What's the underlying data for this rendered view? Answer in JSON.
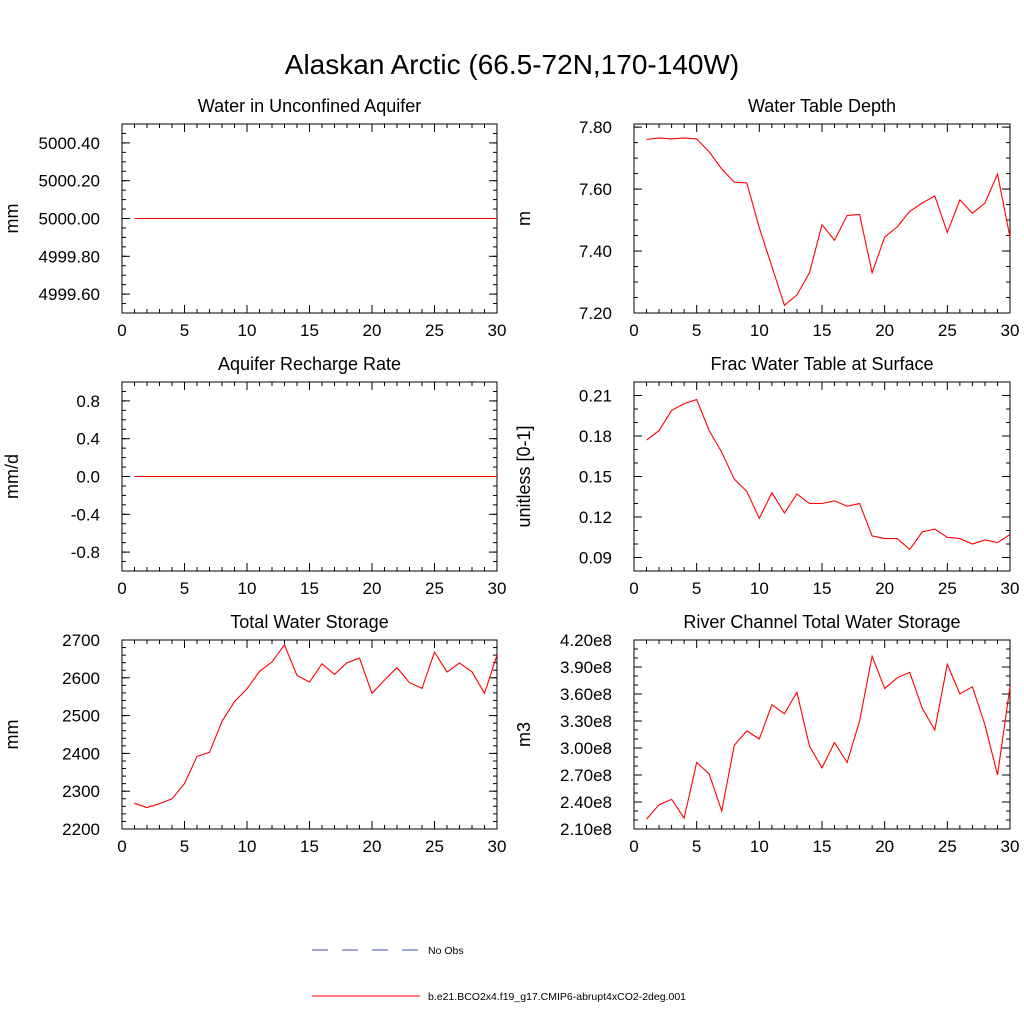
{
  "title": "Alaskan Arctic (66.5-72N,170-140W)",
  "colors": {
    "model": "#ff0000",
    "obs": "#3b4aa8",
    "axis": "#000000"
  },
  "legend": {
    "obs_label": "No Obs",
    "model_label": "b.e21.BCO2x4.f19_g17.CMIP6-abrupt4xCO2-2deg.001"
  },
  "chart_data": [
    {
      "type": "line",
      "title": "Water in Unconfined Aquifer",
      "ylabel": "mm",
      "xlim": [
        0,
        30
      ],
      "ylim": [
        4999.5,
        5000.5
      ],
      "xticks": [
        0,
        5,
        10,
        15,
        20,
        25,
        30
      ],
      "xtick_labels": [
        "0",
        "5",
        "10",
        "15",
        "20",
        "25",
        "30"
      ],
      "yticks": [
        4999.6,
        4999.8,
        5000.0,
        5000.2,
        5000.4
      ],
      "ytick_labels": [
        "4999.60",
        "4999.80",
        "5000.00",
        "5000.20",
        "5000.40"
      ],
      "yminor_step": 0.05,
      "x": [
        1,
        2,
        3,
        4,
        5,
        6,
        7,
        8,
        9,
        10,
        11,
        12,
        13,
        14,
        15,
        16,
        17,
        18,
        19,
        20,
        21,
        22,
        23,
        24,
        25,
        26,
        27,
        28,
        29,
        30
      ],
      "values": [
        5000,
        5000,
        5000,
        5000,
        5000,
        5000,
        5000,
        5000,
        5000,
        5000,
        5000,
        5000,
        5000,
        5000,
        5000,
        5000,
        5000,
        5000,
        5000,
        5000,
        5000,
        5000,
        5000,
        5000,
        5000,
        5000,
        5000,
        5000,
        5000,
        5000
      ]
    },
    {
      "type": "line",
      "title": "Water Table Depth",
      "ylabel": "m",
      "xlim": [
        0,
        30
      ],
      "ylim": [
        7.2,
        7.81
      ],
      "xticks": [
        0,
        5,
        10,
        15,
        20,
        25,
        30
      ],
      "xtick_labels": [
        "0",
        "5",
        "10",
        "15",
        "20",
        "25",
        "30"
      ],
      "yticks": [
        7.2,
        7.4,
        7.6,
        7.8
      ],
      "ytick_labels": [
        "7.20",
        "7.40",
        "7.60",
        "7.80"
      ],
      "yminor_step": 0.05,
      "x": [
        1,
        2,
        3,
        4,
        5,
        6,
        7,
        8,
        9,
        10,
        11,
        12,
        13,
        14,
        15,
        16,
        17,
        18,
        19,
        20,
        21,
        22,
        23,
        24,
        25,
        26,
        27,
        28,
        29,
        30
      ],
      "values": [
        7.76,
        7.765,
        7.762,
        7.765,
        7.762,
        7.72,
        7.665,
        7.622,
        7.62,
        7.475,
        7.35,
        7.225,
        7.258,
        7.33,
        7.485,
        7.435,
        7.515,
        7.518,
        7.33,
        7.445,
        7.478,
        7.528,
        7.555,
        7.578,
        7.46,
        7.565,
        7.522,
        7.555,
        7.648,
        7.445
      ]
    },
    {
      "type": "line",
      "title": "Aquifer Recharge Rate",
      "ylabel": "mm/d",
      "xlim": [
        0,
        30
      ],
      "ylim": [
        -1.0,
        1.0
      ],
      "xticks": [
        0,
        5,
        10,
        15,
        20,
        25,
        30
      ],
      "xtick_labels": [
        "0",
        "5",
        "10",
        "15",
        "20",
        "25",
        "30"
      ],
      "yticks": [
        -0.8,
        -0.4,
        0.0,
        0.4,
        0.8
      ],
      "ytick_labels": [
        "-0.8",
        "-0.4",
        "0.0",
        "0.4",
        "0.8"
      ],
      "yminor_step": 0.1,
      "x": [
        1,
        2,
        3,
        4,
        5,
        6,
        7,
        8,
        9,
        10,
        11,
        12,
        13,
        14,
        15,
        16,
        17,
        18,
        19,
        20,
        21,
        22,
        23,
        24,
        25,
        26,
        27,
        28,
        29,
        30
      ],
      "values": [
        0,
        0,
        0,
        0,
        0,
        0,
        0,
        0,
        0,
        0,
        0,
        0,
        0,
        0,
        0,
        0,
        0,
        0,
        0,
        0,
        0,
        0,
        0,
        0,
        0,
        0,
        0,
        0,
        0,
        0
      ]
    },
    {
      "type": "line",
      "title": "Frac Water Table at Surface",
      "ylabel": "unitless [0-1]",
      "xlim": [
        0,
        30
      ],
      "ylim": [
        0.08,
        0.22
      ],
      "xticks": [
        0,
        5,
        10,
        15,
        20,
        25,
        30
      ],
      "xtick_labels": [
        "0",
        "5",
        "10",
        "15",
        "20",
        "25",
        "30"
      ],
      "yticks": [
        0.09,
        0.12,
        0.15,
        0.18,
        0.21
      ],
      "ytick_labels": [
        "0.09",
        "0.12",
        "0.15",
        "0.18",
        "0.21"
      ],
      "yminor_step": 0.01,
      "x": [
        1,
        2,
        3,
        4,
        5,
        6,
        7,
        8,
        9,
        10,
        11,
        12,
        13,
        14,
        15,
        16,
        17,
        18,
        19,
        20,
        21,
        22,
        23,
        24,
        25,
        26,
        27,
        28,
        29,
        30
      ],
      "values": [
        0.177,
        0.184,
        0.199,
        0.204,
        0.207,
        0.184,
        0.168,
        0.148,
        0.139,
        0.119,
        0.138,
        0.123,
        0.137,
        0.13,
        0.13,
        0.132,
        0.128,
        0.13,
        0.106,
        0.104,
        0.104,
        0.096,
        0.109,
        0.111,
        0.105,
        0.104,
        0.1,
        0.103,
        0.101,
        0.107
      ]
    },
    {
      "type": "line",
      "title": "Total Water Storage",
      "ylabel": "mm",
      "xlim": [
        0,
        30
      ],
      "ylim": [
        2200,
        2700
      ],
      "xticks": [
        0,
        5,
        10,
        15,
        20,
        25,
        30
      ],
      "xtick_labels": [
        "0",
        "5",
        "10",
        "15",
        "20",
        "25",
        "30"
      ],
      "yticks": [
        2200,
        2300,
        2400,
        2500,
        2600,
        2700
      ],
      "ytick_labels": [
        "2200",
        "2300",
        "2400",
        "2500",
        "2600",
        "2700"
      ],
      "yminor_step": 20,
      "x": [
        1,
        2,
        3,
        4,
        5,
        6,
        7,
        8,
        9,
        10,
        11,
        12,
        13,
        14,
        15,
        16,
        17,
        18,
        19,
        20,
        21,
        22,
        23,
        24,
        25,
        26,
        27,
        28,
        29,
        30
      ],
      "values": [
        2268,
        2257,
        2267,
        2280,
        2320,
        2392,
        2403,
        2485,
        2537,
        2571,
        2617,
        2642,
        2687,
        2606,
        2589,
        2637,
        2609,
        2640,
        2652,
        2559,
        2594,
        2627,
        2587,
        2572,
        2668,
        2615,
        2639,
        2616,
        2559,
        2660
      ]
    },
    {
      "type": "line",
      "title": "River Channel Total Water Storage",
      "ylabel": "m3",
      "xlim": [
        0,
        30
      ],
      "ylim": [
        210000000,
        420000000
      ],
      "xticks": [
        0,
        5,
        10,
        15,
        20,
        25,
        30
      ],
      "xtick_labels": [
        "0",
        "5",
        "10",
        "15",
        "20",
        "25",
        "30"
      ],
      "yticks": [
        210000000,
        240000000,
        270000000,
        300000000,
        330000000,
        360000000,
        390000000,
        420000000
      ],
      "ytick_labels": [
        "2.10e8",
        "2.40e8",
        "2.70e8",
        "3.00e8",
        "3.30e8",
        "3.60e8",
        "3.90e8",
        "4.20e8"
      ],
      "yminor_step": 10000000,
      "x": [
        1,
        2,
        3,
        4,
        5,
        6,
        7,
        8,
        9,
        10,
        11,
        12,
        13,
        14,
        15,
        16,
        17,
        18,
        19,
        20,
        21,
        22,
        23,
        24,
        25,
        26,
        27,
        28,
        29,
        30
      ],
      "values": [
        221000000,
        237000000,
        243000000,
        222000000,
        284000000,
        271000000,
        230000000,
        303000000,
        319000000,
        310000000,
        348000000,
        338000000,
        362000000,
        302000000,
        278000000,
        306000000,
        284000000,
        330000000,
        402000000,
        366000000,
        378000000,
        384000000,
        344000000,
        320000000,
        393000000,
        360000000,
        368000000,
        326000000,
        270000000,
        368000000
      ]
    }
  ]
}
